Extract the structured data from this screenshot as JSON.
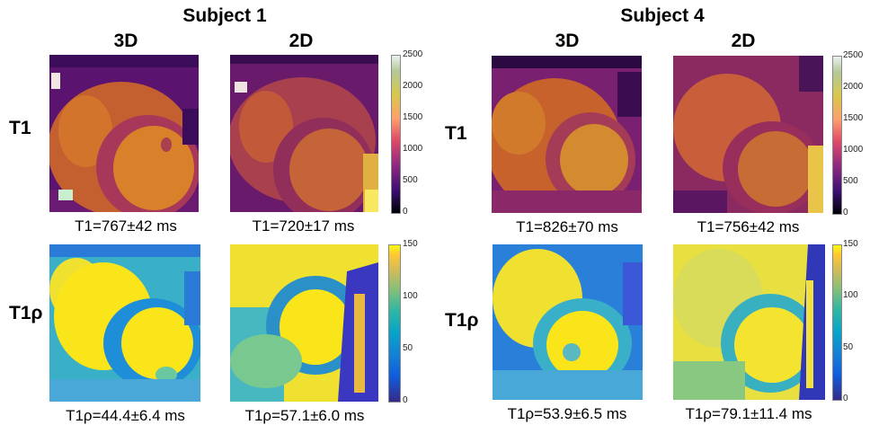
{
  "subjects": [
    {
      "title": "Subject 1",
      "columns": [
        "3D",
        "2D"
      ],
      "t1_values": [
        "T1=767±42 ms",
        "T1=720±17 ms"
      ],
      "t1rho_values": [
        "T1ρ=44.4±6.4 ms",
        "T1ρ=57.1±6.0 ms"
      ]
    },
    {
      "title": "Subject 4",
      "columns": [
        "3D",
        "2D"
      ],
      "t1_values": [
        "T1=826±70 ms",
        "T1=756±42 ms"
      ],
      "t1rho_values": [
        "T1ρ=53.9±6.5 ms",
        "T1ρ=79.1±11.4 ms"
      ]
    }
  ],
  "rows": {
    "t1": "T1",
    "t1rho": "T1ρ"
  },
  "colorbars": {
    "t1": {
      "ticks": [
        "2500",
        "2000",
        "1500",
        "1000",
        "500",
        "0"
      ],
      "colormap": "magma-like"
    },
    "t1rho": {
      "ticks": [
        "150",
        "100",
        "50",
        "0"
      ],
      "colormap": "parula-like"
    }
  }
}
